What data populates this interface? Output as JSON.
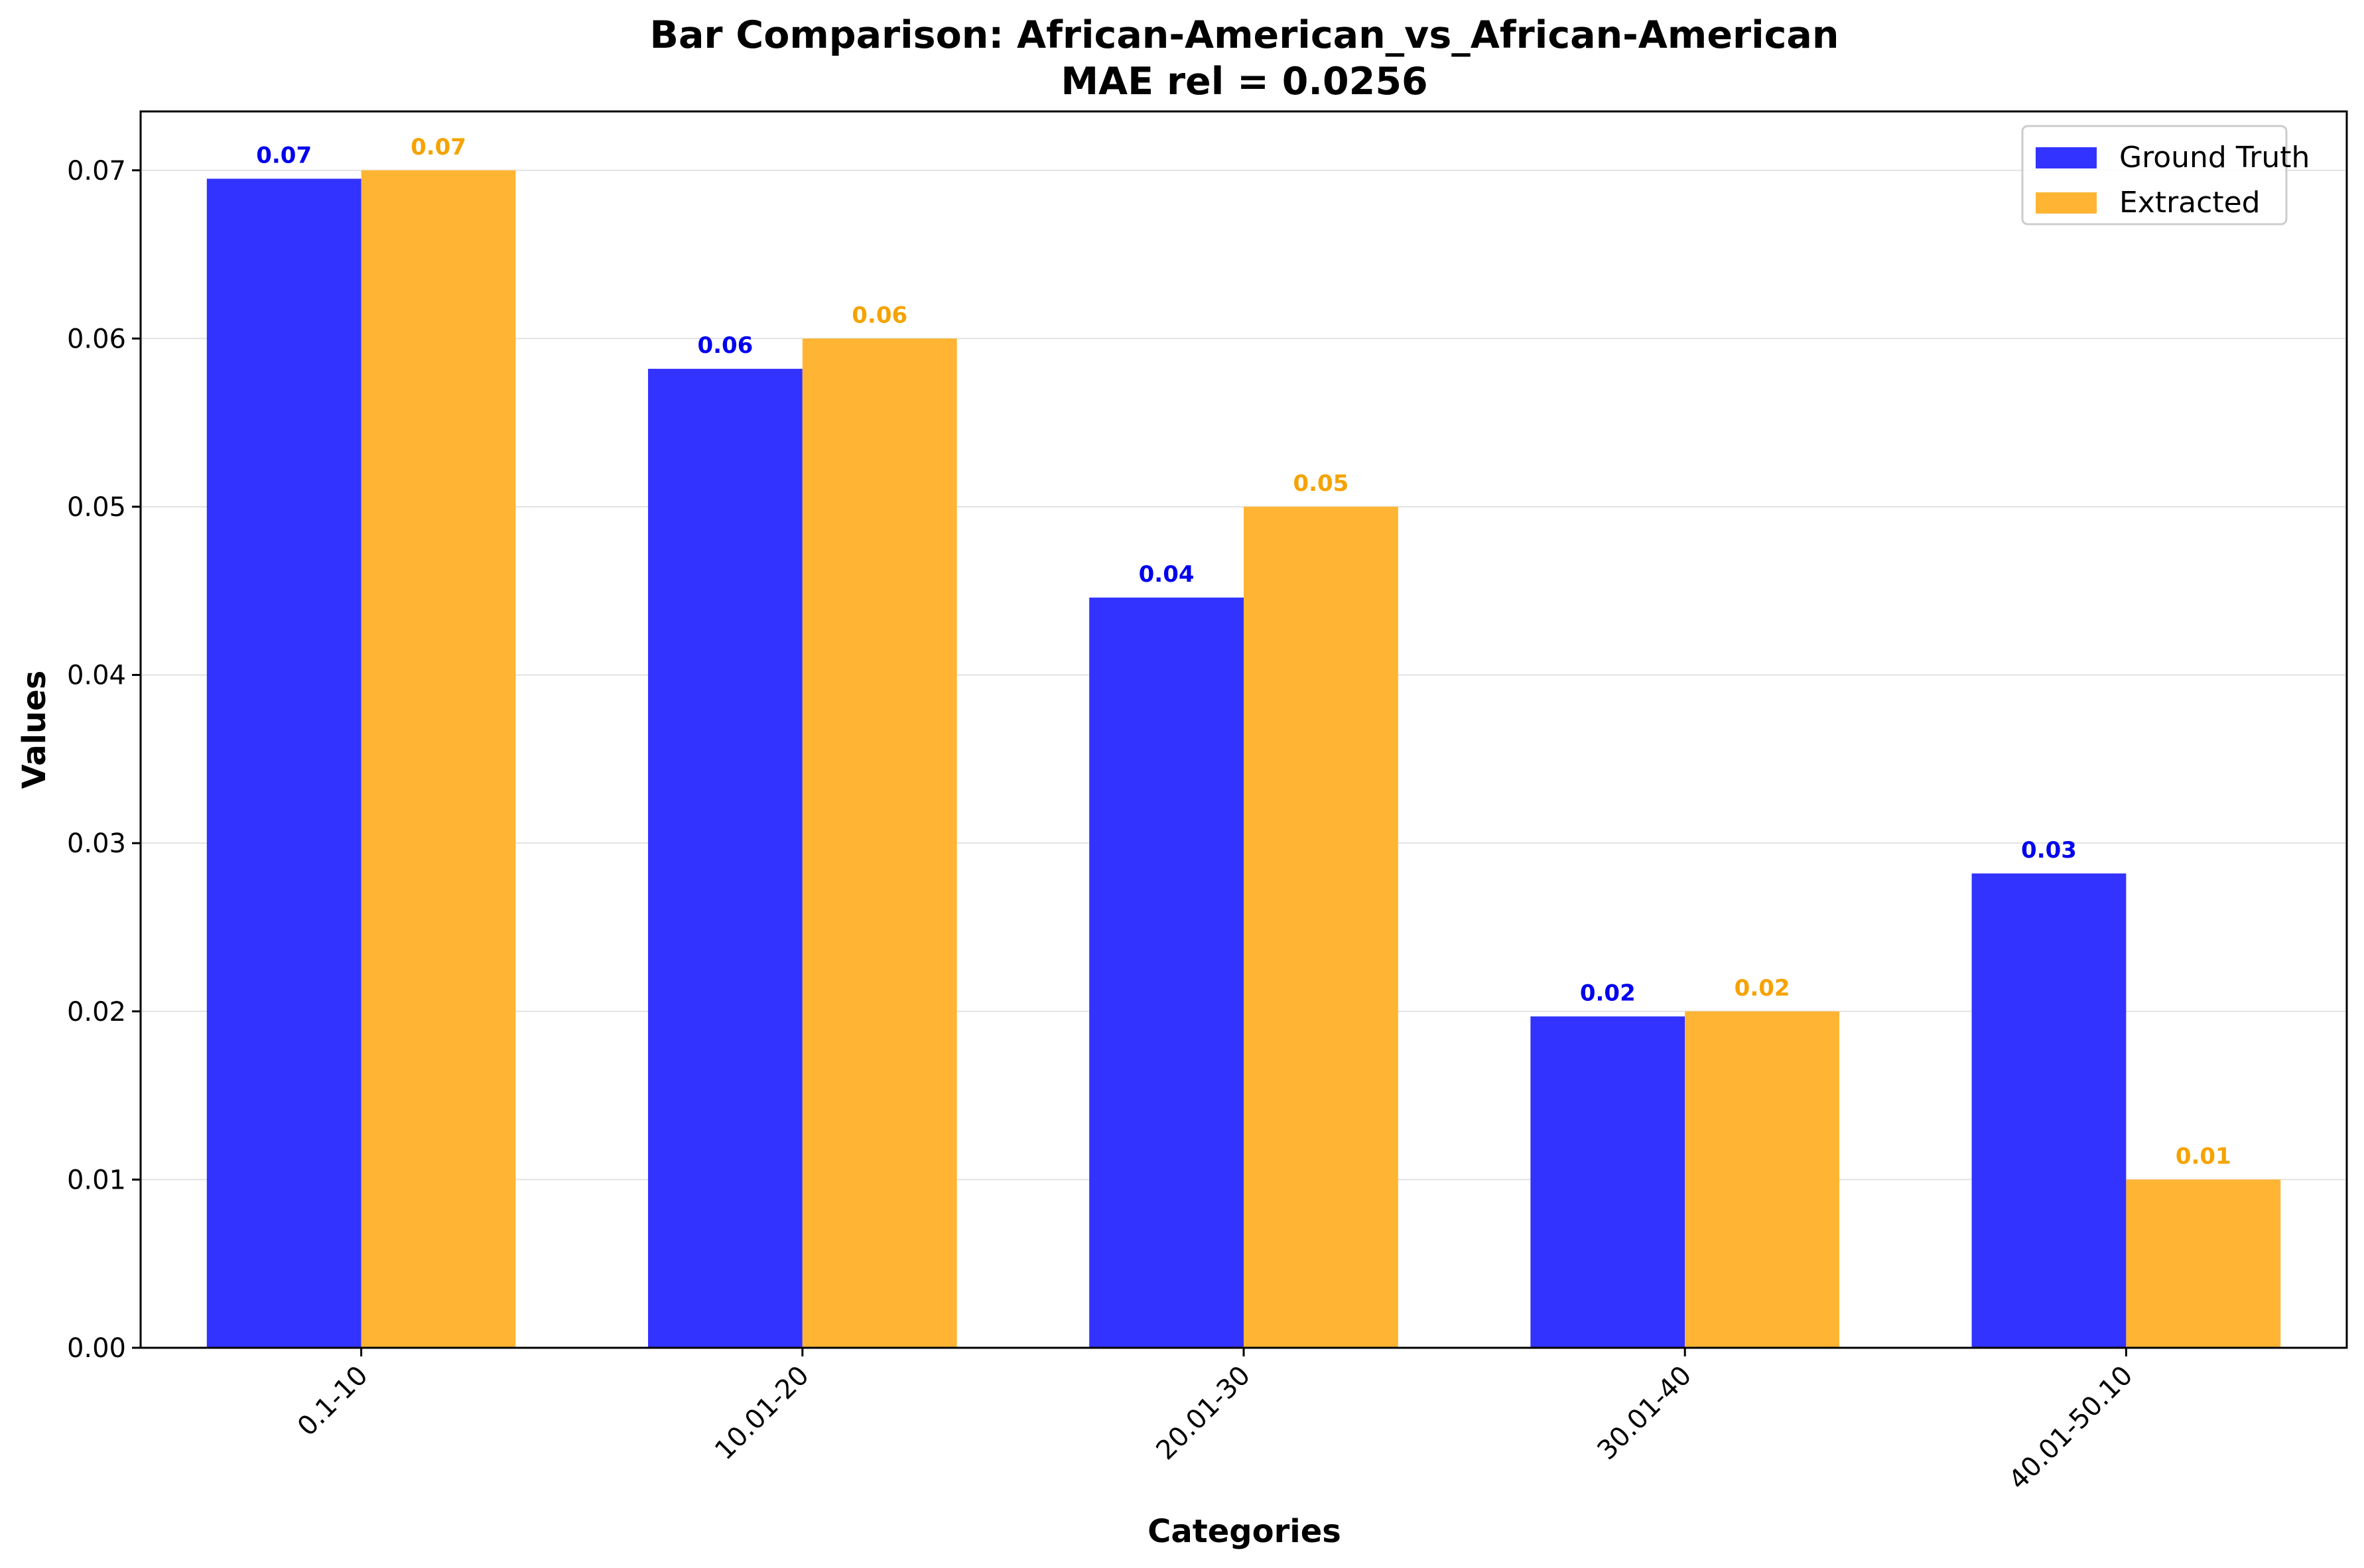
{
  "chart_data": {
    "type": "bar",
    "title": "Bar Comparison: African-American_vs_African-American",
    "subtitle": "MAE rel = 0.0256",
    "xlabel": "Categories",
    "ylabel": "Values",
    "categories": [
      "0.1-10",
      "10.01-20",
      "20.01-30",
      "30.01-40",
      "40.01-50.10"
    ],
    "series": [
      {
        "name": "Ground Truth",
        "color": "#3333ff",
        "label_color": "#0000ee",
        "values": [
          0.0695,
          0.0582,
          0.0446,
          0.0197,
          0.0282
        ],
        "labels": [
          "0.07",
          "0.06",
          "0.04",
          "0.02",
          "0.03"
        ]
      },
      {
        "name": "Extracted",
        "color": "#ffb533",
        "label_color": "#f5a300",
        "values": [
          0.07,
          0.06,
          0.05,
          0.02,
          0.01
        ],
        "labels": [
          "0.07",
          "0.06",
          "0.05",
          "0.02",
          "0.01"
        ]
      }
    ],
    "ylim": [
      0,
      0.0735
    ],
    "yticks": [
      0,
      0.01,
      0.02,
      0.03,
      0.04,
      0.05,
      0.06,
      0.07
    ],
    "ytick_labels": [
      "0.00",
      "0.01",
      "0.02",
      "0.03",
      "0.04",
      "0.05",
      "0.06",
      "0.07"
    ],
    "grid": true,
    "legend_position": "top-right"
  }
}
